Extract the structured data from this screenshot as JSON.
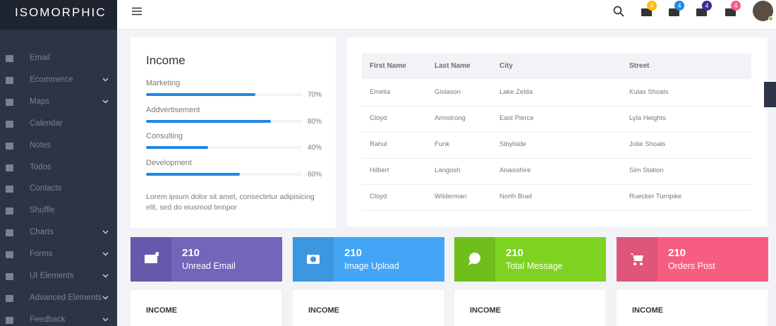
{
  "header": {
    "logo": "ISOMORPHIC",
    "badges": [
      4,
      4,
      4,
      4
    ]
  },
  "sidebar": {
    "items": [
      {
        "label": "Email",
        "submenu": false
      },
      {
        "label": "Ecommerce",
        "submenu": true
      },
      {
        "label": "Maps",
        "submenu": true
      },
      {
        "label": "Calendar",
        "submenu": false
      },
      {
        "label": "Notes",
        "submenu": false
      },
      {
        "label": "Todos",
        "submenu": false
      },
      {
        "label": "Contacts",
        "submenu": false
      },
      {
        "label": "Shuffle",
        "submenu": false
      },
      {
        "label": "Charts",
        "submenu": true
      },
      {
        "label": "Forms",
        "submenu": true
      },
      {
        "label": "UI Elements",
        "submenu": true
      },
      {
        "label": "Advanced Elements",
        "submenu": true
      },
      {
        "label": "Feedback",
        "submenu": true
      }
    ]
  },
  "income_card": {
    "title": "Income",
    "bars": [
      {
        "label": "Marketing",
        "percent": 70,
        "percent_label": "70%"
      },
      {
        "label": "Addvertisement",
        "percent": 80,
        "percent_label": "80%"
      },
      {
        "label": "Consulting",
        "percent": 40,
        "percent_label": "40%"
      },
      {
        "label": "Development",
        "percent": 60,
        "percent_label": "60%"
      }
    ],
    "text": "Lorem ipsum dolor sit amet, consectetur adipisicing elit, sed do eiusmod tempor"
  },
  "table": {
    "columns": [
      "First Name",
      "Last Name",
      "City",
      "Street"
    ],
    "rows": [
      [
        "Emelia",
        "Gislason",
        "Lake Zelda",
        "Kulas Shoals"
      ],
      [
        "Cloyd",
        "Armstrong",
        "East Pierce",
        "Lyla Heights"
      ],
      [
        "Rahul",
        "Funk",
        "Sibylside",
        "Jolie Shoals"
      ],
      [
        "Hilbert",
        "Langosh",
        "Anaisshire",
        "Sim Station"
      ],
      [
        "Cloyd",
        "Wilderman",
        "North Brad",
        "Ruecker Turnpike"
      ]
    ]
  },
  "stats": [
    {
      "value": 210,
      "label": "Unread Email"
    },
    {
      "value": 210,
      "label": "Image Upload"
    },
    {
      "value": 210,
      "label": "Total Message"
    },
    {
      "value": 210,
      "label": "Orders Post"
    }
  ],
  "bottom_cards": [
    "INCOME",
    "INCOME",
    "INCOME",
    "INCOME"
  ]
}
